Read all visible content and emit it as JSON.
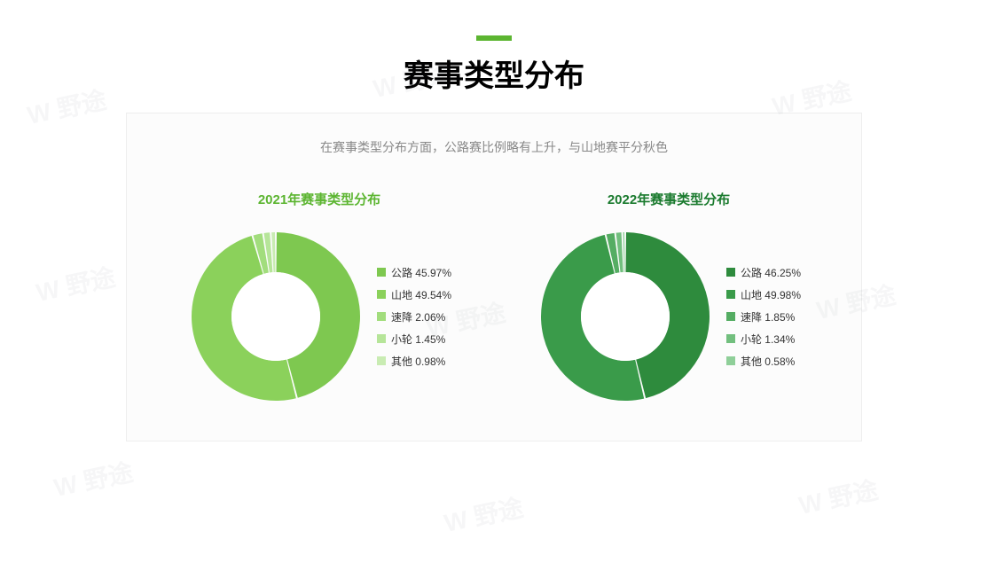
{
  "accent_color": "#5cb531",
  "title": "赛事类型分布",
  "title_color": "#000000",
  "subtitle": "在赛事类型分布方面，公路赛比例略有上升，与山地赛平分秋色",
  "subtitle_color": "#888888",
  "card_bg": "#fcfcfc",
  "card_border": "#eeeeee",
  "watermark_text": "W 野途",
  "charts": [
    {
      "id": "chart-2021",
      "title": "2021年赛事类型分布",
      "title_color": "#5cb531",
      "type": "donut",
      "outer_radius": 95,
      "inner_radius": 50,
      "gap_deg": 1.2,
      "background_color": "#ffffff",
      "series": [
        {
          "label": "公路",
          "value": 45.97,
          "color": "#7ec850",
          "display": "公路 45.97%"
        },
        {
          "label": "山地",
          "value": 49.54,
          "color": "#8bd15b",
          "display": "山地 49.54%"
        },
        {
          "label": "速降",
          "value": 2.06,
          "color": "#a2dd7d",
          "display": "速降 2.06%"
        },
        {
          "label": "小轮",
          "value": 1.45,
          "color": "#b6e599",
          "display": "小轮 1.45%"
        },
        {
          "label": "其他",
          "value": 0.98,
          "color": "#c9ecb3",
          "display": "其他 0.98%"
        }
      ]
    },
    {
      "id": "chart-2022",
      "title": "2022年赛事类型分布",
      "title_color": "#1a7a2e",
      "type": "donut",
      "outer_radius": 95,
      "inner_radius": 50,
      "gap_deg": 1.2,
      "background_color": "#ffffff",
      "series": [
        {
          "label": "公路",
          "value": 46.25,
          "color": "#2e8b3d",
          "display": "公路 46.25%"
        },
        {
          "label": "山地",
          "value": 49.98,
          "color": "#3a9b4a",
          "display": "山地 49.98%"
        },
        {
          "label": "速降",
          "value": 1.85,
          "color": "#55ad63",
          "display": "速降 1.85%"
        },
        {
          "label": "小轮",
          "value": 1.34,
          "color": "#72bf7e",
          "display": "小轮 1.34%"
        },
        {
          "label": "其他",
          "value": 0.58,
          "color": "#8fcf99",
          "display": "其他 0.58%"
        }
      ]
    }
  ]
}
